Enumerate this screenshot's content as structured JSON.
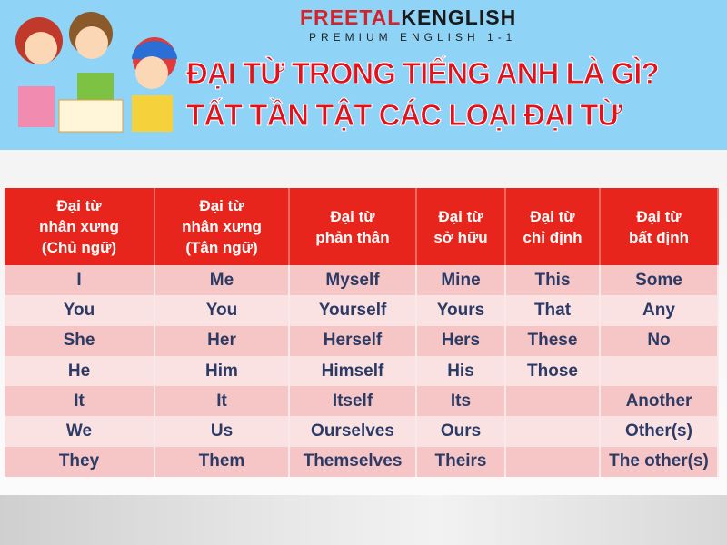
{
  "header": {
    "logo_red": "FREETAL",
    "logo_dark": "KENGLISH",
    "tagline": "PREMIUM ENGLISH 1-1",
    "title_line1": "ĐẠI TỪ  TRONG TIẾNG ANH LÀ GÌ?",
    "title_line2": "TẤT TẦN TẬT CÁC LOẠI ĐẠI TỪ"
  },
  "table": {
    "headers": [
      "Đại từ\nnhân xưng\n(Chủ ngữ)",
      "Đại từ\nnhân xưng\n(Tân ngữ)",
      "Đại từ\nphản thân",
      "Đại từ\nsở hữu",
      "Đại từ\nchỉ định",
      "Đại từ\nbất định"
    ],
    "rows": [
      [
        "I",
        "Me",
        "Myself",
        "Mine",
        "This",
        "Some"
      ],
      [
        "You",
        "You",
        "Yourself",
        "Yours",
        "That",
        "Any"
      ],
      [
        "She",
        "Her",
        "Herself",
        "Hers",
        "These",
        "No"
      ],
      [
        "He",
        "Him",
        "Himself",
        "His",
        "Those",
        ""
      ],
      [
        "It",
        "It",
        "Itself",
        "Its",
        "",
        "Another"
      ],
      [
        "We",
        "Us",
        "Ourselves",
        "Ours",
        "",
        "Other(s)"
      ],
      [
        "They",
        "Them",
        "Themselves",
        "Theirs",
        "",
        "The other(s)"
      ]
    ]
  },
  "colors": {
    "banner": "#8fd4f7",
    "header_red": "#e8251c",
    "row_dark": "#f6c6c6",
    "row_light": "#fbe2e2",
    "text": "#2c3b66"
  }
}
